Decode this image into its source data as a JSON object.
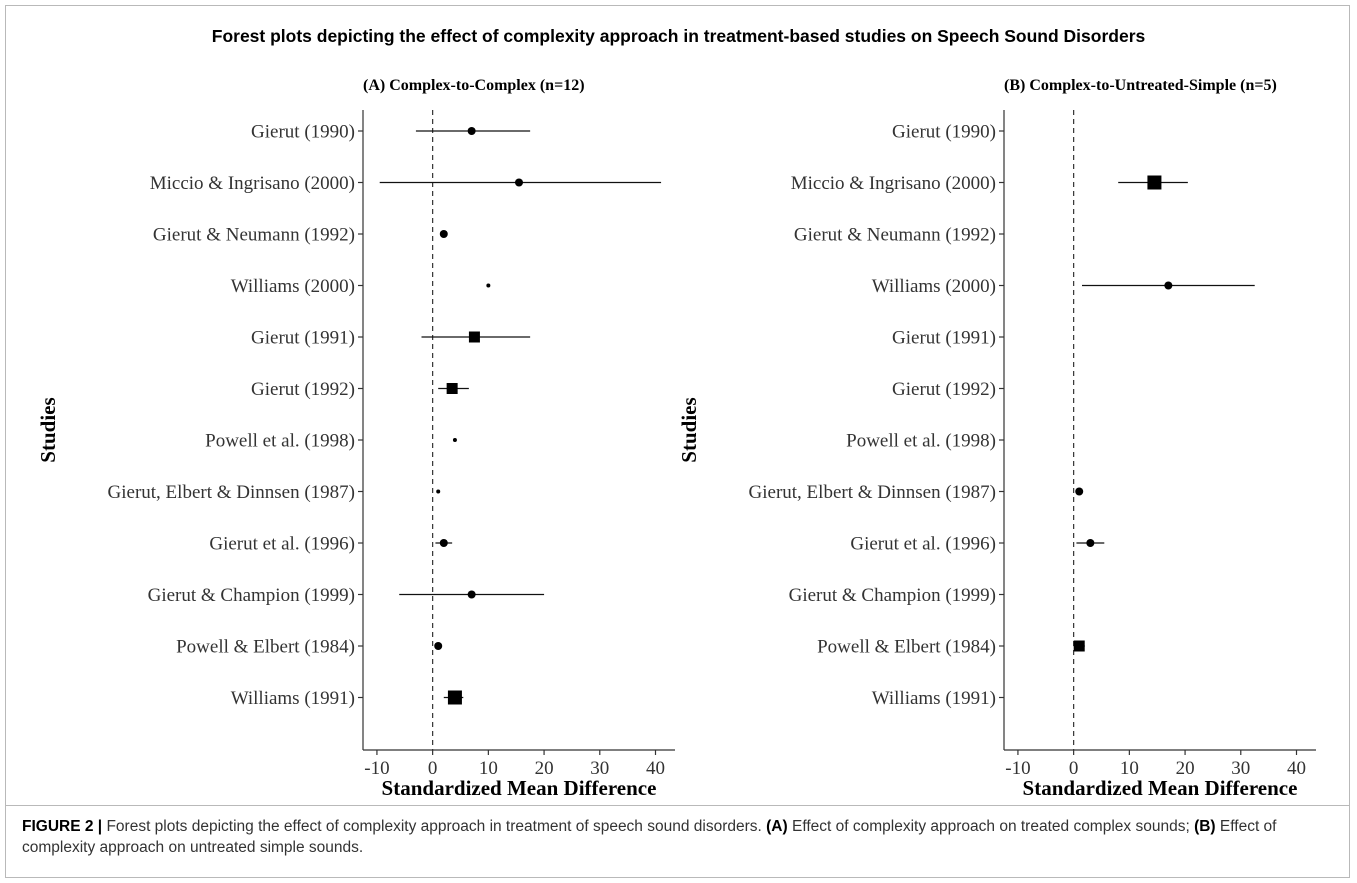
{
  "figure": {
    "title": "Forest plots depicting the effect of complexity approach in treatment-based studies on Speech Sound Disorders",
    "caption": {
      "label": "FIGURE 2 |",
      "text1": " Forest plots depicting the effect of complexity approach in treatment of speech sound disorders. ",
      "bold_a": "(A)",
      "text2": " Effect of complexity approach on treated complex sounds; ",
      "bold_b": "(B)",
      "text3": " Effect of complexity approach on untreated simple sounds."
    }
  },
  "chart_data": [
    {
      "type": "forest",
      "title": "(A) Complex-to-Complex (n=12)",
      "xlabel": "Standardized Mean Difference",
      "ylabel": "Studies",
      "xlim": [
        -12.5,
        43.5
      ],
      "xticks": [
        -10,
        0,
        10,
        20,
        30,
        40
      ],
      "reference_line": 0,
      "studies": [
        {
          "name": "Gierut (1990)",
          "estimate": 7,
          "lower": -3,
          "upper": 17.5,
          "weight": 2
        },
        {
          "name": "Miccio & Ingrisano (2000)",
          "estimate": 15.5,
          "lower": -9.5,
          "upper": 41,
          "weight": 2
        },
        {
          "name": "Gierut & Neumann (1992)",
          "estimate": 2,
          "lower": 2,
          "upper": 2,
          "weight": 2
        },
        {
          "name": "Williams (2000)",
          "estimate": 10,
          "lower": 10,
          "upper": 10,
          "weight": 1
        },
        {
          "name": "Gierut (1991)",
          "estimate": 7.5,
          "lower": -2,
          "upper": 17.5,
          "weight": 3
        },
        {
          "name": "Gierut (1992)",
          "estimate": 3.5,
          "lower": 1,
          "upper": 6.5,
          "weight": 3
        },
        {
          "name": "Powell et al. (1998)",
          "estimate": 4,
          "lower": 4,
          "upper": 4,
          "weight": 1
        },
        {
          "name": "Gierut, Elbert & Dinnsen (1987)",
          "estimate": 1,
          "lower": 1,
          "upper": 1,
          "weight": 1
        },
        {
          "name": "Gierut et al. (1996)",
          "estimate": 2,
          "lower": 0.5,
          "upper": 3.5,
          "weight": 2
        },
        {
          "name": "Gierut & Champion (1999)",
          "estimate": 7,
          "lower": -6,
          "upper": 20,
          "weight": 2
        },
        {
          "name": "Powell & Elbert (1984)",
          "estimate": 1,
          "lower": 1,
          "upper": 1,
          "weight": 2
        },
        {
          "name": "Williams (1991)",
          "estimate": 4,
          "lower": 2,
          "upper": 5.5,
          "weight": 4
        }
      ]
    },
    {
      "type": "forest",
      "title": "(B) Complex-to-Untreated-Simple (n=5)",
      "xlabel": "Standardized Mean Difference",
      "ylabel": "Studies",
      "xlim": [
        -12.5,
        43.5
      ],
      "xticks": [
        -10,
        0,
        10,
        20,
        30,
        40
      ],
      "reference_line": 0,
      "studies": [
        {
          "name": "Gierut (1990)"
        },
        {
          "name": "Miccio & Ingrisano (2000)",
          "estimate": 14.5,
          "lower": 8,
          "upper": 20.5,
          "weight": 4
        },
        {
          "name": "Gierut & Neumann (1992)"
        },
        {
          "name": "Williams (2000)",
          "estimate": 17,
          "lower": 1.5,
          "upper": 32.5,
          "weight": 2
        },
        {
          "name": "Gierut (1991)"
        },
        {
          "name": "Gierut (1992)"
        },
        {
          "name": "Powell et al. (1998)"
        },
        {
          "name": "Gierut, Elbert & Dinnsen (1987)",
          "estimate": 1,
          "lower": 1,
          "upper": 1,
          "weight": 2
        },
        {
          "name": "Gierut et al. (1996)",
          "estimate": 3,
          "lower": 0.5,
          "upper": 5.5,
          "weight": 2
        },
        {
          "name": "Gierut & Champion (1999)"
        },
        {
          "name": "Powell & Elbert (1984)",
          "estimate": 1,
          "lower": 0,
          "upper": 2,
          "weight": 3
        },
        {
          "name": "Williams (1991)"
        }
      ]
    }
  ]
}
